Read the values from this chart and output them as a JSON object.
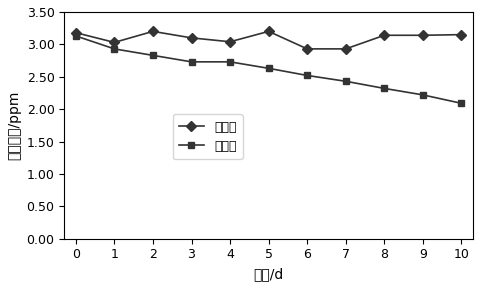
{
  "x": [
    0,
    1,
    2,
    3,
    4,
    5,
    6,
    7,
    8,
    9,
    10
  ],
  "control_group": [
    3.18,
    3.03,
    3.2,
    3.1,
    3.04,
    3.2,
    2.93,
    2.93,
    3.14,
    3.14,
    3.15
  ],
  "experiment_group": [
    3.13,
    2.93,
    2.83,
    2.73,
    2.73,
    2.63,
    2.52,
    2.43,
    2.32,
    2.22,
    2.09
  ],
  "control_label": "对照组",
  "experiment_label": "试验组",
  "xlabel": "时间/d",
  "ylabel": "氨气浓度/ppm",
  "ylim": [
    0.0,
    3.5
  ],
  "yticks": [
    0.0,
    0.5,
    1.0,
    1.5,
    2.0,
    2.5,
    3.0,
    3.5
  ],
  "xticks": [
    0,
    1,
    2,
    3,
    4,
    5,
    6,
    7,
    8,
    9,
    10
  ],
  "line_color": "#333333",
  "marker_control": "D",
  "marker_experiment": "s",
  "markersize": 5,
  "linewidth": 1.2,
  "legend_fontsize": 9,
  "axis_fontsize": 10,
  "tick_fontsize": 9
}
